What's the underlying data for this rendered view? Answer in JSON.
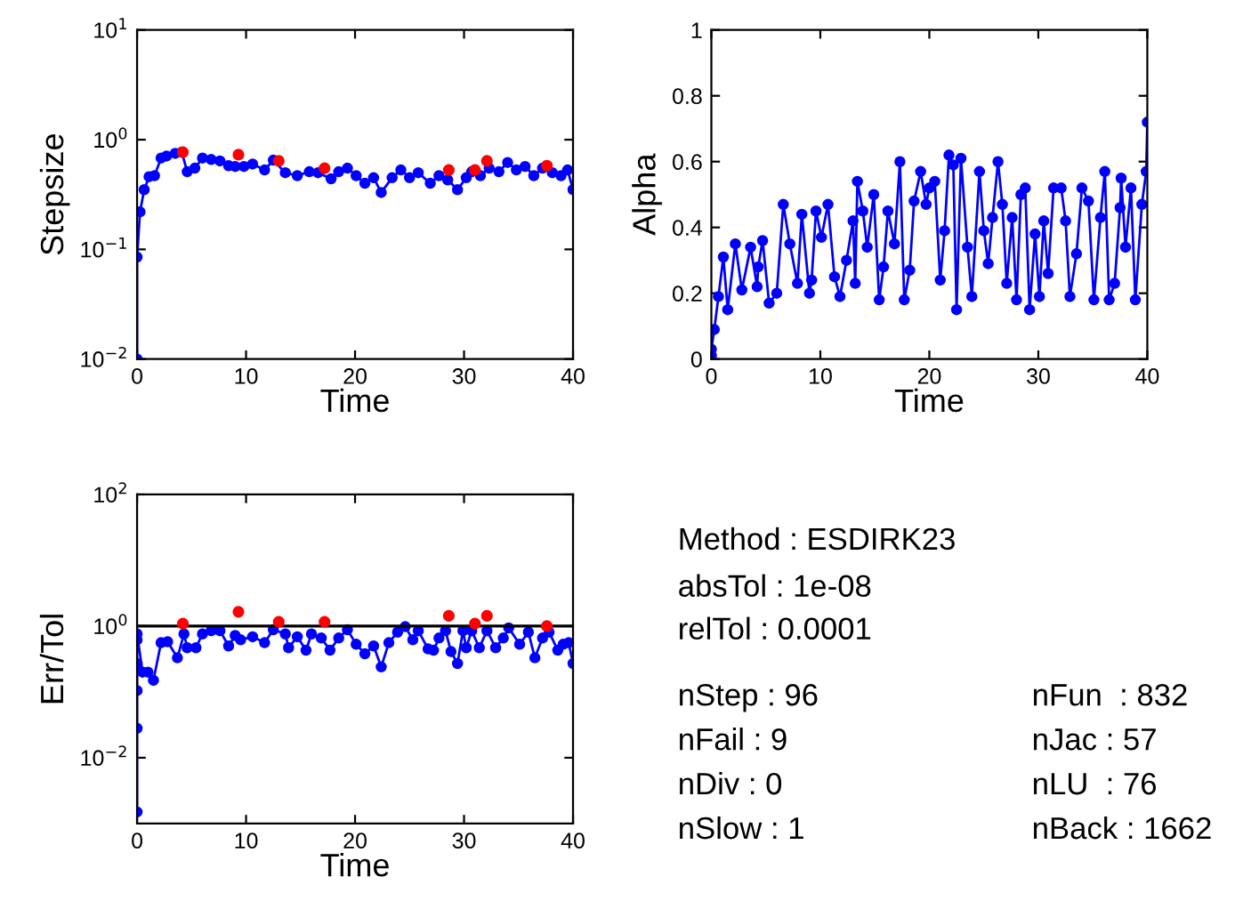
{
  "chart_data": [
    {
      "type": "line",
      "xlabel": "Time",
      "ylabel": "Stepsize",
      "log": "y",
      "xlim": [
        0,
        40
      ],
      "xticks": [
        0,
        10,
        20,
        30,
        40
      ],
      "ylim": [
        0.01,
        10
      ],
      "yticks": [
        {
          "value": 0.01,
          "label": "10$^{−2}$"
        },
        {
          "value": 0.1,
          "label": "10$^{−1}$"
        },
        {
          "value": 1,
          "label": "10$^{0}$"
        },
        {
          "value": 10,
          "label": "10$^{1}$"
        }
      ],
      "grid": false,
      "marker": "circle",
      "line_style": "solid",
      "series": [
        {
          "type": "line",
          "color": "#0000ff",
          "x": [
            0,
            0,
            0.27,
            0.65,
            1.1,
            1.6,
            2.2,
            2.7,
            3.5,
            4.1,
            4.6,
            5.3,
            6.0,
            6.8,
            7.6,
            8.4,
            9.0,
            9.8,
            10.6,
            11.7,
            12.5,
            13.6,
            14.7,
            15.8,
            16.6,
            17.8,
            18.5,
            19.3,
            20.1,
            20.9,
            21.7,
            22.4,
            23.4,
            24.2,
            25.0,
            25.8,
            26.9,
            27.7,
            28.5,
            29.4,
            30.2,
            30.7,
            31.5,
            32.3,
            33.2,
            34.0,
            34.8,
            35.6,
            36.4,
            37.2,
            38.1,
            38.9,
            39.5,
            40
          ],
          "values": [
            0.01,
            0.085,
            0.22,
            0.35,
            0.46,
            0.47,
            0.68,
            0.71,
            0.75,
            0.77,
            0.51,
            0.55,
            0.68,
            0.66,
            0.64,
            0.58,
            0.57,
            0.57,
            0.6,
            0.53,
            0.65,
            0.5,
            0.47,
            0.51,
            0.5,
            0.44,
            0.51,
            0.55,
            0.47,
            0.4,
            0.45,
            0.33,
            0.45,
            0.53,
            0.45,
            0.5,
            0.4,
            0.47,
            0.43,
            0.35,
            0.45,
            0.51,
            0.47,
            0.55,
            0.51,
            0.62,
            0.53,
            0.57,
            0.47,
            0.55,
            0.5,
            0.47,
            0.53,
            0.35
          ]
        },
        {
          "type": "scatter",
          "color": "#ff0000",
          "x": [
            4.2,
            9.3,
            13.0,
            17.2,
            28.6,
            31.0,
            32.1,
            37.6
          ],
          "values": [
            0.77,
            0.73,
            0.64,
            0.55,
            0.53,
            0.53,
            0.64,
            0.58
          ]
        }
      ]
    },
    {
      "type": "line",
      "xlabel": "Time",
      "ylabel": "Alpha",
      "xlim": [
        0,
        40
      ],
      "xticks": [
        0,
        10,
        20,
        30,
        40
      ],
      "ylim": [
        0,
        1
      ],
      "yticks": [
        0,
        0.2,
        0.4,
        0.6,
        0.8,
        1
      ],
      "grid": false,
      "marker": "circle",
      "line_style": "solid",
      "series": [
        {
          "type": "line",
          "color": "#0000ff",
          "x": [
            0,
            0,
            0.27,
            0.65,
            1.1,
            1.5,
            2.2,
            2.8,
            3.6,
            4.2,
            4.3,
            4.7,
            5.3,
            6.0,
            6.6,
            7.2,
            7.9,
            8.3,
            9.0,
            9.2,
            9.6,
            10.1,
            10.7,
            11.3,
            11.8,
            12.4,
            13.0,
            13.2,
            13.4,
            13.9,
            14.3,
            14.9,
            15.4,
            15.8,
            16.2,
            16.8,
            17.3,
            17.7,
            18.2,
            18.6,
            19.2,
            19.7,
            20.0,
            20.5,
            21.0,
            21.4,
            21.8,
            22.2,
            22.5,
            22.9,
            23.5,
            23.9,
            24.6,
            25.0,
            25.4,
            25.8,
            26.3,
            26.7,
            27.1,
            27.6,
            28.0,
            28.4,
            28.8,
            29.2,
            29.7,
            30.1,
            30.5,
            30.9,
            31.4,
            32.1,
            32.5,
            32.9,
            33.5,
            34.0,
            34.6,
            35.1,
            35.7,
            36.1,
            36.5,
            37.0,
            37.5,
            37.6,
            38.0,
            38.5,
            38.9,
            39.5,
            39.9,
            40
          ],
          "values": [
            0.01,
            0.03,
            0.09,
            0.19,
            0.31,
            0.15,
            0.35,
            0.21,
            0.34,
            0.22,
            0.28,
            0.36,
            0.17,
            0.2,
            0.47,
            0.35,
            0.23,
            0.44,
            0.2,
            0.24,
            0.45,
            0.37,
            0.47,
            0.25,
            0.19,
            0.3,
            0.42,
            0.23,
            0.54,
            0.45,
            0.34,
            0.5,
            0.18,
            0.28,
            0.45,
            0.35,
            0.6,
            0.18,
            0.27,
            0.48,
            0.57,
            0.47,
            0.52,
            0.54,
            0.24,
            0.39,
            0.62,
            0.59,
            0.15,
            0.61,
            0.34,
            0.19,
            0.57,
            0.39,
            0.29,
            0.43,
            0.6,
            0.47,
            0.23,
            0.43,
            0.18,
            0.5,
            0.52,
            0.15,
            0.38,
            0.19,
            0.42,
            0.26,
            0.52,
            0.52,
            0.42,
            0.19,
            0.32,
            0.52,
            0.48,
            0.18,
            0.43,
            0.57,
            0.18,
            0.23,
            0.46,
            0.55,
            0.34,
            0.52,
            0.18,
            0.47,
            0.57,
            0.72
          ]
        }
      ]
    },
    {
      "type": "line",
      "xlabel": "Time",
      "ylabel": "Err/Tol",
      "log": "y",
      "xlim": [
        0,
        40
      ],
      "xticks": [
        0,
        10,
        20,
        30,
        40
      ],
      "ylim": [
        0.001,
        100
      ],
      "yticks": [
        {
          "value": 0.01,
          "label": "10$^{−2}$"
        },
        {
          "value": 1,
          "label": "10$^{0}$"
        },
        {
          "value": 100,
          "label": "10$^{2}$"
        }
      ],
      "grid": false,
      "marker": "circle",
      "line_style": "solid",
      "ref_lines": [
        {
          "axis": "y",
          "value": 1,
          "color": "#000000",
          "line_style": "solid"
        }
      ],
      "series": [
        {
          "type": "line",
          "color": "#0000ff",
          "x": [
            0,
            0,
            0,
            0,
            0,
            0,
            0.5,
            1.0,
            1.5,
            2.2,
            2.8,
            3.7,
            4.3,
            4.6,
            5.4,
            6.0,
            6.8,
            7.6,
            8.4,
            9.0,
            9.5,
            10.6,
            11.7,
            12.5,
            13.6,
            13.9,
            14.7,
            15.5,
            16.0,
            16.9,
            17.7,
            18.5,
            19.3,
            20.1,
            20.9,
            21.7,
            22.4,
            23.1,
            23.9,
            24.6,
            25.3,
            25.8,
            26.7,
            27.2,
            27.7,
            28.3,
            28.8,
            29.4,
            29.9,
            30.2,
            30.7,
            31.4,
            32.1,
            32.9,
            33.6,
            34.1,
            35.1,
            35.9,
            36.5,
            37.2,
            37.8,
            38.6,
            39.1,
            39.6,
            40
          ],
          "values": [
            0.0015,
            0.028,
            0.105,
            0.27,
            0.62,
            0.76,
            0.2,
            0.2,
            0.15,
            0.56,
            0.58,
            0.33,
            0.76,
            0.47,
            0.47,
            0.76,
            0.85,
            0.85,
            0.5,
            0.72,
            0.62,
            0.69,
            0.56,
            0.88,
            0.76,
            0.47,
            0.69,
            0.43,
            0.76,
            0.66,
            0.43,
            0.66,
            0.88,
            0.53,
            0.38,
            0.5,
            0.24,
            0.56,
            0.81,
            0.98,
            0.62,
            0.85,
            0.45,
            0.43,
            0.66,
            0.85,
            0.41,
            0.27,
            0.85,
            0.47,
            0.85,
            0.47,
            0.85,
            0.47,
            0.66,
            0.94,
            0.53,
            0.81,
            0.33,
            0.66,
            0.81,
            0.43,
            0.53,
            0.56,
            0.27
          ]
        },
        {
          "type": "scatter",
          "color": "#ff0000",
          "x": [
            4.2,
            9.3,
            13.0,
            17.2,
            28.6,
            31.0,
            32.1,
            37.6
          ],
          "values": [
            1.09,
            1.65,
            1.16,
            1.16,
            1.43,
            1.09,
            1.43,
            1.0
          ]
        }
      ]
    },
    {
      "type": "other",
      "annotations": [
        "Method : ESDIRK23",
        "absTol : 1e-08",
        "relTol : 0.0001",
        "nStep : 96",
        "nFail : 9",
        "nDiv : 0",
        "nSlow : 1",
        "nFun  : 832",
        "nJac : 57",
        "nLU  : 76",
        "nBack : 1662"
      ]
    }
  ]
}
